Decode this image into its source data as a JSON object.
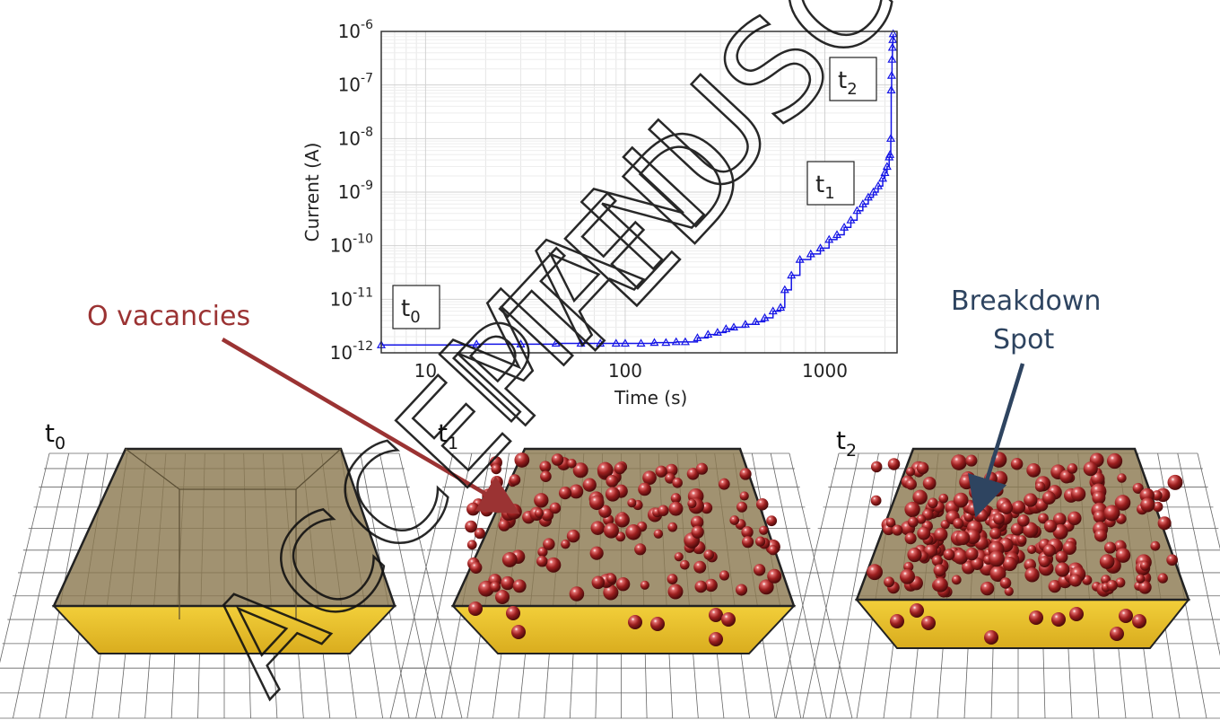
{
  "chart_data": {
    "type": "scatter",
    "xlabel": "Time (s)",
    "ylabel": "Current (A)",
    "x_scale": "log",
    "y_scale": "log",
    "xlim": [
      6,
      2300
    ],
    "ylim": [
      1e-12,
      1e-06
    ],
    "x_ticks": [
      10,
      100,
      1000
    ],
    "x_tick_labels": [
      "10",
      "100",
      "1000"
    ],
    "y_ticks": [
      1e-12,
      1e-11,
      1e-10,
      1e-09,
      1e-08,
      1e-07,
      1e-06
    ],
    "y_tick_labels": [
      {
        "base": "10",
        "exp": "-12"
      },
      {
        "base": "10",
        "exp": "-11"
      },
      {
        "base": "10",
        "exp": "-10"
      },
      {
        "base": "10",
        "exp": "-9"
      },
      {
        "base": "10",
        "exp": "-8"
      },
      {
        "base": "10",
        "exp": "-7"
      },
      {
        "base": "10",
        "exp": "-6"
      }
    ],
    "grid": true,
    "series_color": "#1414e6",
    "x": [
      6,
      18,
      30,
      45,
      60,
      75,
      90,
      100,
      120,
      140,
      160,
      180,
      200,
      230,
      260,
      290,
      320,
      350,
      400,
      450,
      500,
      550,
      600,
      630,
      680,
      750,
      850,
      950,
      1050,
      1150,
      1250,
      1350,
      1450,
      1550,
      1650,
      1750,
      1850,
      1950,
      2000,
      2050,
      2100,
      2120,
      2140,
      2150,
      2160,
      2170,
      2180,
      2190,
      2200
    ],
    "y": [
      1.4e-12,
      1.45e-12,
      1.45e-12,
      1.5e-12,
      1.5e-12,
      1.5e-12,
      1.5e-12,
      1.5e-12,
      1.5e-12,
      1.55e-12,
      1.55e-12,
      1.6e-12,
      1.6e-12,
      1.9e-12,
      2.2e-12,
      2.4e-12,
      2.8e-12,
      3e-12,
      3.4e-12,
      3.8e-12,
      4.5e-12,
      6e-12,
      7e-12,
      1.5e-11,
      2.8e-11,
      5.5e-11,
      7e-11,
      9e-11,
      1.3e-10,
      1.6e-10,
      2.2e-10,
      3e-10,
      4.5e-10,
      6e-10,
      8e-10,
      1e-09,
      1.3e-09,
      1.8e-09,
      2.3e-09,
      3e-09,
      4.5e-09,
      5e-09,
      1e-08,
      8e-08,
      1.5e-07,
      3e-07,
      5e-07,
      7e-07,
      9e-07
    ],
    "annotations": [
      {
        "base": "t",
        "sub": "0"
      },
      {
        "base": "t",
        "sub": "1"
      },
      {
        "base": "t",
        "sub": "2"
      }
    ]
  },
  "panels": [
    {
      "base": "t",
      "sub": "0"
    },
    {
      "base": "t",
      "sub": "1"
    },
    {
      "base": "t",
      "sub": "2"
    }
  ],
  "callouts": {
    "o_vacancies": "O vacancies",
    "breakdown_line1": "Breakdown",
    "breakdown_line2": "Spot"
  },
  "watermark": {
    "line1": "ACCEPTED",
    "line2": "MANUSCRIPT"
  },
  "colors": {
    "slab_top": "#8c7a52",
    "slab_front": "#e8c232",
    "vacancy": "#9c1f1f",
    "o_arrow": "#9b3333",
    "breakdown_arrow": "#2e4460",
    "grid": "#555555"
  }
}
